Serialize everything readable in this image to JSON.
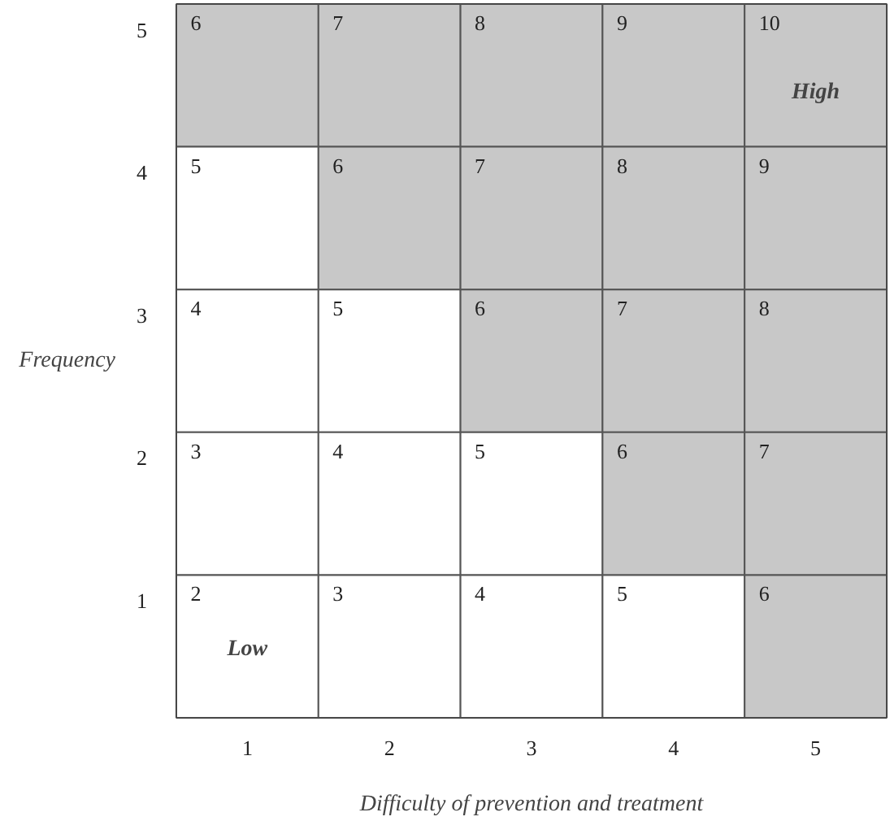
{
  "chart_data": {
    "type": "heatmap",
    "xlabel": "Difficulty of prevention and treatment",
    "ylabel": "Frequency",
    "categories": [
      "1",
      "2",
      "3",
      "4",
      "5"
    ],
    "y_categories": [
      "5",
      "4",
      "3",
      "2",
      "1"
    ],
    "cells": [
      [
        6,
        7,
        8,
        9,
        10
      ],
      [
        5,
        6,
        7,
        8,
        9
      ],
      [
        4,
        5,
        6,
        7,
        8
      ],
      [
        3,
        4,
        5,
        6,
        7
      ],
      [
        2,
        3,
        4,
        5,
        6
      ]
    ],
    "colors": [
      [
        "#c8c8c8",
        "#c8c8c8",
        "#c8c8c8",
        "#c8c8c8",
        "#c8c8c8"
      ],
      [
        "#ffffff",
        "#c8c8c8",
        "#c8c8c8",
        "#c8c8c8",
        "#c8c8c8"
      ],
      [
        "#ffffff",
        "#ffffff",
        "#c8c8c8",
        "#c8c8c8",
        "#c8c8c8"
      ],
      [
        "#ffffff",
        "#ffffff",
        "#ffffff",
        "#c8c8c8",
        "#c8c8c8"
      ],
      [
        "#ffffff",
        "#ffffff",
        "#ffffff",
        "#ffffff",
        "#c8c8c8"
      ]
    ],
    "data_labels": true,
    "annotations": [
      "High",
      "Low"
    ]
  }
}
